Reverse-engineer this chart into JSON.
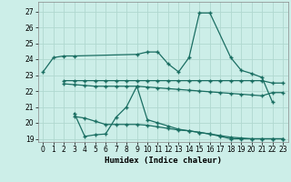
{
  "xlabel": "Humidex (Indice chaleur)",
  "xlim": [
    -0.5,
    23.5
  ],
  "ylim": [
    18.8,
    27.6
  ],
  "yticks": [
    19,
    20,
    21,
    22,
    23,
    24,
    25,
    26,
    27
  ],
  "xticks": [
    0,
    1,
    2,
    3,
    4,
    5,
    6,
    7,
    8,
    9,
    10,
    11,
    12,
    13,
    14,
    15,
    16,
    17,
    18,
    19,
    20,
    21,
    22,
    23
  ],
  "bg_color": "#cceee8",
  "line_color": "#1a6e62",
  "grid_color": "#b0d8d0",
  "line1_x": [
    0,
    1,
    2,
    3,
    9,
    10,
    11,
    12,
    13,
    14,
    15,
    16,
    18,
    19,
    20,
    21,
    22
  ],
  "line1_y": [
    23.2,
    24.1,
    24.2,
    24.2,
    24.3,
    24.45,
    24.45,
    23.7,
    23.2,
    24.1,
    26.9,
    26.9,
    24.1,
    23.3,
    23.1,
    22.85,
    21.3
  ],
  "line2_x": [
    2,
    3,
    4,
    5,
    6,
    7,
    8,
    9,
    10,
    11,
    12,
    13,
    14,
    15,
    16,
    17,
    18,
    19,
    20,
    21,
    22,
    23
  ],
  "line2_y": [
    22.65,
    22.65,
    22.65,
    22.65,
    22.65,
    22.65,
    22.65,
    22.65,
    22.65,
    22.65,
    22.65,
    22.65,
    22.65,
    22.65,
    22.65,
    22.65,
    22.65,
    22.65,
    22.65,
    22.65,
    22.5,
    22.5
  ],
  "line3_x": [
    2,
    3,
    4,
    5,
    6,
    7,
    8,
    9,
    10,
    11,
    12,
    13,
    14,
    15,
    16,
    17,
    18,
    19,
    20,
    21,
    22,
    23
  ],
  "line3_y": [
    22.45,
    22.4,
    22.35,
    22.3,
    22.3,
    22.3,
    22.3,
    22.3,
    22.25,
    22.2,
    22.15,
    22.1,
    22.05,
    22.0,
    21.95,
    21.9,
    21.85,
    21.8,
    21.75,
    21.7,
    21.9,
    21.9
  ],
  "line4_x": [
    3,
    4,
    5,
    6,
    7,
    8,
    9,
    10,
    11,
    12,
    13,
    14,
    15,
    16,
    17,
    18,
    19,
    20,
    21,
    22,
    23
  ],
  "line4_y": [
    20.6,
    19.15,
    19.25,
    19.3,
    20.35,
    21.0,
    22.3,
    20.2,
    20.0,
    19.8,
    19.6,
    19.5,
    19.4,
    19.3,
    19.15,
    19.0,
    19.0,
    19.0,
    19.0,
    19.0,
    19.0
  ],
  "line5_x": [
    3,
    4,
    5,
    6,
    7,
    8,
    9,
    10,
    11,
    12,
    13,
    14,
    15,
    16,
    17,
    18,
    19,
    20,
    21,
    22,
    23
  ],
  "line5_y": [
    20.4,
    20.3,
    20.1,
    19.9,
    19.9,
    19.9,
    19.9,
    19.85,
    19.75,
    19.65,
    19.55,
    19.5,
    19.4,
    19.3,
    19.2,
    19.1,
    19.05,
    19.0,
    19.0,
    19.0,
    19.0
  ]
}
